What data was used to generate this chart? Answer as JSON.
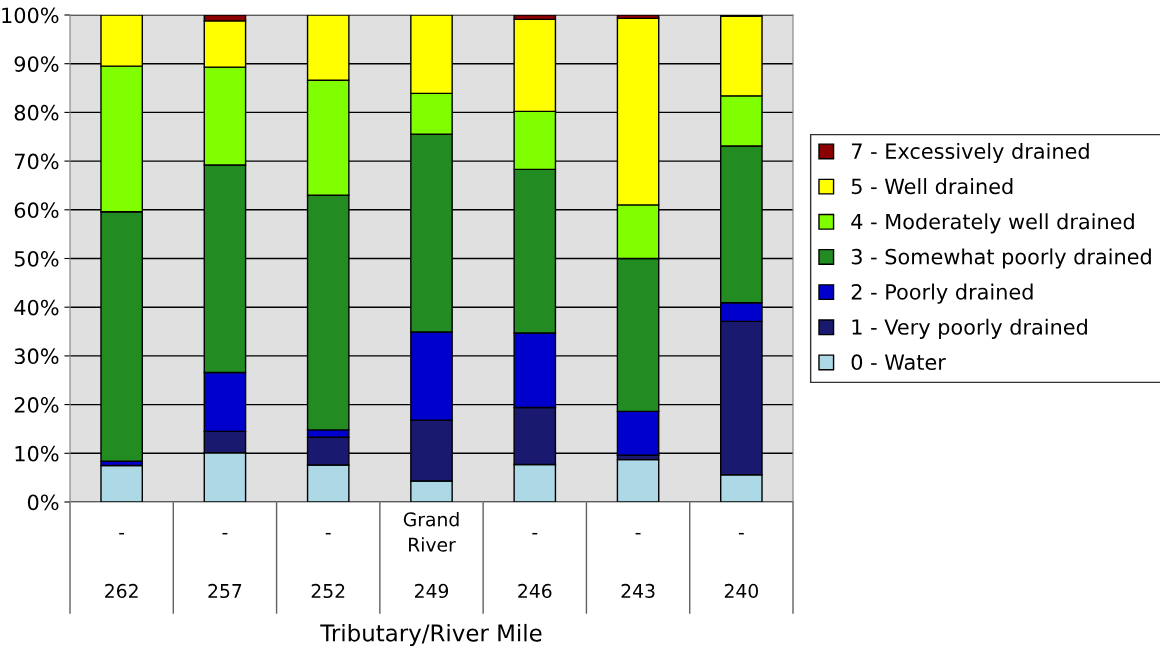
{
  "chart_data": {
    "type": "bar",
    "stacked": true,
    "xlabel": "Tributary/River Mile",
    "categories": [
      "-\n262",
      "-\n257",
      "-\n252",
      "Grand River\n249",
      "-\n246",
      "-\n243",
      "-\n240"
    ],
    "series": [
      {
        "name": "0 - Water",
        "color": "#add8e6",
        "values": [
          7.5,
          10.1,
          7.6,
          4.3,
          7.7,
          8.7,
          5.6
        ]
      },
      {
        "name": "1 - Very poorly drained",
        "color": "#191970",
        "values": [
          null,
          4.4,
          5.7,
          12.5,
          11.7,
          0.9,
          31.5
        ]
      },
      {
        "name": "2 - Poorly drained",
        "color": "#0000cd",
        "values": [
          0.9,
          12.1,
          1.5,
          18.1,
          15.3,
          9.0,
          3.8
        ]
      },
      {
        "name": "3 - Somewhat poorly drained",
        "color": "#228b22",
        "values": [
          51.2,
          42.6,
          48.2,
          40.6,
          33.6,
          31.4,
          32.2
        ]
      },
      {
        "name": "4 - Moderately well drained",
        "color": "#7fff00",
        "values": [
          29.9,
          20.1,
          23.6,
          8.4,
          11.9,
          11.0,
          10.3
        ]
      },
      {
        "name": "5 - Well drained",
        "color": "#ffff00",
        "values": [
          10.5,
          9.5,
          13.4,
          16.1,
          18.9,
          38.3,
          16.4
        ]
      },
      {
        "name": "7 - Excessively drained",
        "color": "#8b0000",
        "values": [
          null,
          1.2,
          null,
          null,
          0.9,
          0.7,
          0.2
        ]
      }
    ],
    "ylim": [
      0,
      100
    ],
    "yticks": [
      {
        "value": 0,
        "label": "0%"
      },
      {
        "value": 10,
        "label": "10%"
      },
      {
        "value": 20,
        "label": "20%"
      },
      {
        "value": 30,
        "label": "30%"
      },
      {
        "value": 40,
        "label": "40%"
      },
      {
        "value": 50,
        "label": "50%"
      },
      {
        "value": 60,
        "label": "60%"
      },
      {
        "value": 70,
        "label": "70%"
      },
      {
        "value": 80,
        "label": "80%"
      },
      {
        "value": 90,
        "label": "90%"
      },
      {
        "value": 100,
        "label": "100%"
      }
    ],
    "grid": "y",
    "legend": "right"
  }
}
